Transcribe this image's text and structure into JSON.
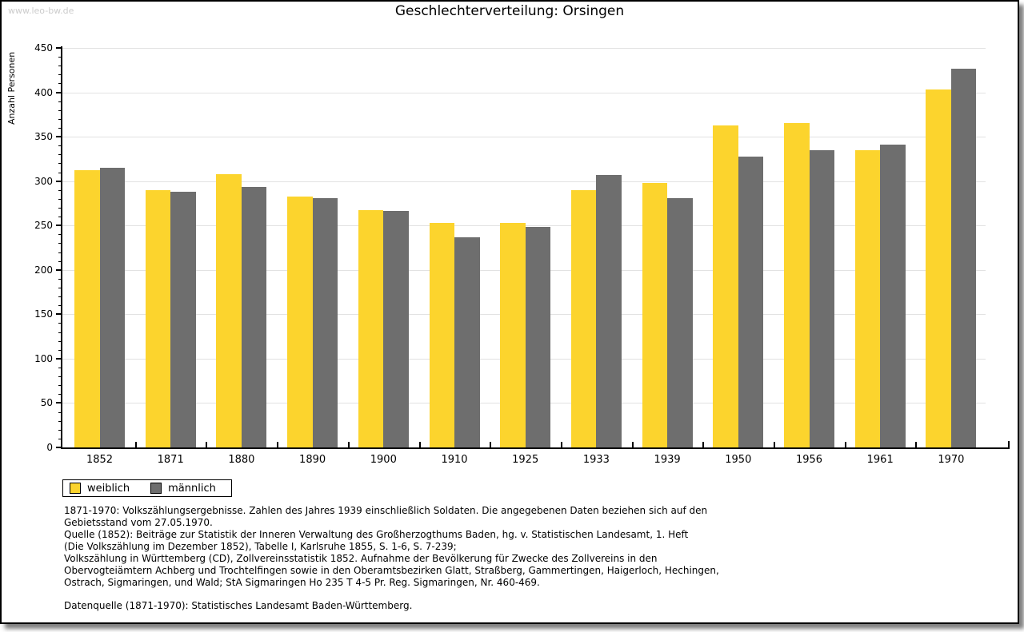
{
  "watermark": "www.leo-bw.de",
  "chart_data": {
    "type": "bar",
    "title": "Geschlechterverteilung: Orsingen",
    "xlabel": "",
    "ylabel": "Anzahl Personen",
    "ylim": [
      0,
      450
    ],
    "ytick_step": 50,
    "ytick_minor_step": 10,
    "grid": true,
    "legend_position": "bottom-left-outside",
    "categories": [
      "1852",
      "1871",
      "1880",
      "1890",
      "1900",
      "1910",
      "1925",
      "1933",
      "1939",
      "1950",
      "1956",
      "1961",
      "1970"
    ],
    "series": [
      {
        "name": "weiblich",
        "color": "#FCD42D",
        "values": [
          312,
          290,
          308,
          283,
          267,
          253,
          253,
          290,
          298,
          363,
          365,
          335,
          403
        ]
      },
      {
        "name": "männlich",
        "color": "#6E6E6E",
        "values": [
          315,
          288,
          293,
          281,
          266,
          237,
          248,
          307,
          281,
          328,
          335,
          341,
          427
        ]
      }
    ]
  },
  "footer": {
    "lines": [
      "1871-1970: Volkszählungsergebnisse. Zahlen des Jahres 1939 einschließlich Soldaten. Die angegebenen Daten beziehen sich auf den",
      "Gebietsstand vom 27.05.1970.",
      "Quelle (1852): Beiträge zur Statistik der Inneren Verwaltung des Großherzogthums Baden, hg. v. Statistischen Landesamt, 1. Heft",
      "(Die Volkszählung im Dezember 1852), Tabelle I, Karlsruhe 1855, S. 1-6, S. 7-239;",
      "Volkszählung in Württemberg (CD), Zollvereinsstatistik 1852. Aufnahme der Bevölkerung für Zwecke des Zollvereins in den",
      "Obervogteiämtern Achberg und Trochtelfingen sowie in den Oberamtsbezirken Glatt, Straßberg, Gammertingen, Haigerloch, Hechingen,",
      "Ostrach, Sigmaringen, und Wald; StA Sigmaringen Ho 235 T 4-5 Pr. Reg. Sigmaringen, Nr. 460-469."
    ],
    "datenquelle": "Datenquelle (1871-1970): Statistisches Landesamt Baden-Württemberg."
  },
  "colors": {
    "weiblich": "#FCD42D",
    "männlich": "#6E6E6E",
    "gridline": "#E2E2E2",
    "watermark": "#CCCCCC",
    "axis": "#000000"
  }
}
